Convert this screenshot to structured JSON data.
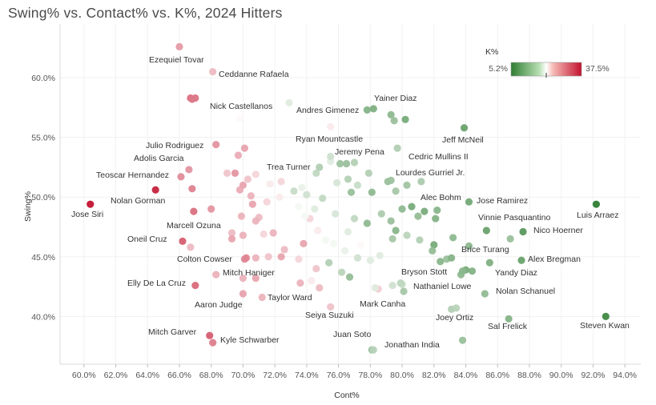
{
  "chart_data": {
    "type": "scatter",
    "title": "Swing% vs. Contact% vs. K%, 2024 Hitters",
    "xlabel": "Cont%",
    "ylabel": "Swing%",
    "xlim": [
      58.5,
      95.0
    ],
    "ylim": [
      36.0,
      64.5
    ],
    "x_ticks": [
      60,
      62,
      64,
      66,
      68,
      70,
      72,
      74,
      76,
      78,
      80,
      82,
      84,
      86,
      88,
      90,
      92,
      94
    ],
    "y_ticks": [
      40,
      45,
      50,
      55,
      60
    ],
    "grid": true,
    "legend": {
      "title": "K%",
      "min_label": "5.2%",
      "max_label": "37.5%",
      "min": 5.2,
      "max": 37.5,
      "mid": 21.35,
      "position": "top-right"
    },
    "color_scale": {
      "low": "#2e7d32",
      "mid": "#ffffff",
      "high": "#c2122e"
    },
    "labeled_points": [
      {
        "name": "Ezequiel Tovar",
        "x": 66.0,
        "y": 62.6,
        "k": 26.5
      },
      {
        "name": "Ceddanne Rafaela",
        "x": 68.1,
        "y": 60.5,
        "k": 24.5
      },
      {
        "name": "Nick Castellanos",
        "x": 66.8,
        "y": 58.2,
        "k": 29.0
      },
      {
        "name": "Yainer Diaz",
        "x": 78.2,
        "y": 57.4,
        "k": 13.0
      },
      {
        "name": "Andres Gimenez",
        "x": 77.8,
        "y": 57.3,
        "k": 13.5
      },
      {
        "name": "Jeff McNeil",
        "x": 83.9,
        "y": 55.8,
        "k": 11.0
      },
      {
        "name": "Julio Rodriguez",
        "x": 68.3,
        "y": 54.4,
        "k": 27.0
      },
      {
        "name": "Ryan Mountcastle",
        "x": 75.5,
        "y": 53.4,
        "k": 19.0
      },
      {
        "name": "Jeremy Pena",
        "x": 76.1,
        "y": 52.8,
        "k": 15.5
      },
      {
        "name": "Cedric Mullins II",
        "x": 79.7,
        "y": 54.1,
        "k": 17.0
      },
      {
        "name": "Adolis Garcia",
        "x": 66.6,
        "y": 52.3,
        "k": 27.0
      },
      {
        "name": "Trea Turner",
        "x": 74.8,
        "y": 52.5,
        "k": 17.0
      },
      {
        "name": "Teoscar Hernandez",
        "x": 66.1,
        "y": 51.7,
        "k": 27.5
      },
      {
        "name": "Lourdes Gurriel Jr.",
        "x": 79.3,
        "y": 51.4,
        "k": 15.5
      },
      {
        "name": "Nolan Gorman",
        "x": 64.5,
        "y": 50.6,
        "k": 36.0
      },
      {
        "name": "Jose Siri",
        "x": 60.4,
        "y": 49.4,
        "k": 37.5
      },
      {
        "name": "Alec Bohm",
        "x": 81.4,
        "y": 48.8,
        "k": 12.5
      },
      {
        "name": "Jose Ramirez",
        "x": 84.2,
        "y": 49.6,
        "k": 12.0
      },
      {
        "name": "Luis Arraez",
        "x": 92.2,
        "y": 49.4,
        "k": 5.2
      },
      {
        "name": "Vinnie Pasquantino",
        "x": 85.3,
        "y": 47.2,
        "k": 11.0
      },
      {
        "name": "Nico Hoerner",
        "x": 87.6,
        "y": 47.1,
        "k": 9.5
      },
      {
        "name": "Marcell Ozuna",
        "x": 70.0,
        "y": 46.8,
        "k": 25.0
      },
      {
        "name": "Oneil Cruz",
        "x": 66.2,
        "y": 46.3,
        "k": 31.0
      },
      {
        "name": "Brice Turang",
        "x": 83.1,
        "y": 44.9,
        "k": 13.5
      },
      {
        "name": "Colton Cowser",
        "x": 70.2,
        "y": 44.9,
        "k": 28.0
      },
      {
        "name": "Alex Bregman",
        "x": 87.5,
        "y": 44.7,
        "k": 11.0
      },
      {
        "name": "Bryson Stott",
        "x": 83.8,
        "y": 43.8,
        "k": 14.0
      },
      {
        "name": "Yandy Diaz",
        "x": 85.5,
        "y": 44.5,
        "k": 13.0
      },
      {
        "name": "Mitch Haniger",
        "x": 68.3,
        "y": 43.5,
        "k": 25.0
      },
      {
        "name": "Elly De La Cruz",
        "x": 67.0,
        "y": 42.6,
        "k": 30.0
      },
      {
        "name": "Nathaniel Lowe",
        "x": 79.9,
        "y": 42.8,
        "k": 18.0
      },
      {
        "name": "Nolan Schanuel",
        "x": 85.2,
        "y": 41.9,
        "k": 14.5
      },
      {
        "name": "Taylor Ward",
        "x": 74.3,
        "y": 43.0,
        "k": 22.0
      },
      {
        "name": "Aaron Judge",
        "x": 70.0,
        "y": 41.9,
        "k": 26.0
      },
      {
        "name": "Mark Canha",
        "x": 78.3,
        "y": 42.4,
        "k": 20.0
      },
      {
        "name": "Seiya Suzuki",
        "x": 75.5,
        "y": 40.8,
        "k": 24.0
      },
      {
        "name": "Joey Ortiz",
        "x": 83.4,
        "y": 40.7,
        "k": 17.5
      },
      {
        "name": "Sal Frelick",
        "x": 86.7,
        "y": 39.8,
        "k": 13.5
      },
      {
        "name": "Steven Kwan",
        "x": 92.8,
        "y": 40.0,
        "k": 7.0
      },
      {
        "name": "Mitch Garver",
        "x": 67.9,
        "y": 38.4,
        "k": 31.0
      },
      {
        "name": "Kyle Schwarber",
        "x": 68.1,
        "y": 37.8,
        "k": 28.5
      },
      {
        "name": "Juan Soto",
        "x": 78.1,
        "y": 37.2,
        "k": 15.5
      },
      {
        "name": "Jonathan India",
        "x": 78.2,
        "y": 37.2,
        "k": 17.5
      }
    ],
    "other_points": [
      [
        66.7,
        58.3,
        30.0
      ],
      [
        72.9,
        57.9,
        20.0
      ],
      [
        79.3,
        56.9,
        14.0
      ],
      [
        80.2,
        56.5,
        12.0
      ],
      [
        79.5,
        56.4,
        15.0
      ],
      [
        75.5,
        55.9,
        22.0
      ],
      [
        69.8,
        56.6,
        21.5
      ],
      [
        70.1,
        54.1,
        26.0
      ],
      [
        69.7,
        53.5,
        25.5
      ],
      [
        75.5,
        53.0,
        20.0
      ],
      [
        76.5,
        52.8,
        15.0
      ],
      [
        77.0,
        52.9,
        17.0
      ],
      [
        69.5,
        52.0,
        27.0
      ],
      [
        69.0,
        52.0,
        24.0
      ],
      [
        70.3,
        51.5,
        24.0
      ],
      [
        70.8,
        51.9,
        23.0
      ],
      [
        71.7,
        51.1,
        22.0
      ],
      [
        72.4,
        51.3,
        23.0
      ],
      [
        73.7,
        50.8,
        20.5
      ],
      [
        74.6,
        52.0,
        18.0
      ],
      [
        75.9,
        51.2,
        19.5
      ],
      [
        76.6,
        51.5,
        17.0
      ],
      [
        77.2,
        51.0,
        18.5
      ],
      [
        77.9,
        52.0,
        17.0
      ],
      [
        79.1,
        51.3,
        15.0
      ],
      [
        79.6,
        50.5,
        16.0
      ],
      [
        80.3,
        51.0,
        15.5
      ],
      [
        81.2,
        51.3,
        16.5
      ],
      [
        78.1,
        50.4,
        14.0
      ],
      [
        76.8,
        50.4,
        15.0
      ],
      [
        75.0,
        49.9,
        18.0
      ],
      [
        74.0,
        50.2,
        19.0
      ],
      [
        73.2,
        50.5,
        18.5
      ],
      [
        72.3,
        50.0,
        22.0
      ],
      [
        71.5,
        49.6,
        23.0
      ],
      [
        70.5,
        50.1,
        25.0
      ],
      [
        70.0,
        51.0,
        26.0
      ],
      [
        69.8,
        50.6,
        25.5
      ],
      [
        70.6,
        49.4,
        26.0
      ],
      [
        71.0,
        48.3,
        24.5
      ],
      [
        70.8,
        48.0,
        25.0
      ],
      [
        66.8,
        50.7,
        28.5
      ],
      [
        68.0,
        49.0,
        27.0
      ],
      [
        66.9,
        48.8,
        30.0
      ],
      [
        69.9,
        48.4,
        25.0
      ],
      [
        74.5,
        49.0,
        20.0
      ],
      [
        75.8,
        48.6,
        19.5
      ],
      [
        77.0,
        48.2,
        18.0
      ],
      [
        77.8,
        47.8,
        14.0
      ],
      [
        78.7,
        48.6,
        16.5
      ],
      [
        79.3,
        48.0,
        15.0
      ],
      [
        80.0,
        49.0,
        14.0
      ],
      [
        80.6,
        49.2,
        12.0
      ],
      [
        81.0,
        48.4,
        14.5
      ],
      [
        82.2,
        48.9,
        13.5
      ],
      [
        82.1,
        48.2,
        13.0
      ],
      [
        79.6,
        47.2,
        13.5
      ],
      [
        79.4,
        46.5,
        16.0
      ],
      [
        80.3,
        46.8,
        17.5
      ],
      [
        81.1,
        46.4,
        17.0
      ],
      [
        82.0,
        46.0,
        12.0
      ],
      [
        83.2,
        46.6,
        14.0
      ],
      [
        84.2,
        45.9,
        14.0
      ],
      [
        86.8,
        46.5,
        15.0
      ],
      [
        82.8,
        44.8,
        15.0
      ],
      [
        84.4,
        43.8,
        13.0
      ],
      [
        84.0,
        43.9,
        12.0
      ],
      [
        83.7,
        43.5,
        14.0
      ],
      [
        82.4,
        44.6,
        13.5
      ],
      [
        81.9,
        45.5,
        14.5
      ],
      [
        78.0,
        44.7,
        20.0
      ],
      [
        77.2,
        44.9,
        19.0
      ],
      [
        76.4,
        45.5,
        20.5
      ],
      [
        75.7,
        46.1,
        21.0
      ],
      [
        75.4,
        44.5,
        17.0
      ],
      [
        76.2,
        43.7,
        17.5
      ],
      [
        76.7,
        43.3,
        14.5
      ],
      [
        78.6,
        45.1,
        20.0
      ],
      [
        79.4,
        42.6,
        19.0
      ],
      [
        80.1,
        42.1,
        16.0
      ],
      [
        74.6,
        44.0,
        24.0
      ],
      [
        73.5,
        44.8,
        23.0
      ],
      [
        72.4,
        45.0,
        26.0
      ],
      [
        71.9,
        47.0,
        25.0
      ],
      [
        71.3,
        46.9,
        23.0
      ],
      [
        72.6,
        45.6,
        24.5
      ],
      [
        73.8,
        46.1,
        26.0
      ],
      [
        74.7,
        47.2,
        22.0
      ],
      [
        75.2,
        46.4,
        21.0
      ],
      [
        76.6,
        47.1,
        20.0
      ],
      [
        77.4,
        46.0,
        21.5
      ],
      [
        74.2,
        48.2,
        23.0
      ],
      [
        73.9,
        48.4,
        21.0
      ],
      [
        73.5,
        49.2,
        21.0
      ],
      [
        69.3,
        47.0,
        24.5
      ],
      [
        69.3,
        46.5,
        26.0
      ],
      [
        66.7,
        45.8,
        24.5
      ],
      [
        70.1,
        44.8,
        28.0
      ],
      [
        70.8,
        44.9,
        25.0
      ],
      [
        71.6,
        45.0,
        24.0
      ],
      [
        70.0,
        43.2,
        25.0
      ],
      [
        70.8,
        43.2,
        26.0
      ],
      [
        71.2,
        41.6,
        25.0
      ],
      [
        73.6,
        42.8,
        25.0
      ],
      [
        74.8,
        42.4,
        24.5
      ],
      [
        78.5,
        42.3,
        23.5
      ],
      [
        80.0,
        42.7,
        18.5
      ],
      [
        83.1,
        40.6,
        17.0
      ],
      [
        83.8,
        38.0,
        15.0
      ],
      [
        67.0,
        58.3,
        29.5
      ]
    ]
  }
}
